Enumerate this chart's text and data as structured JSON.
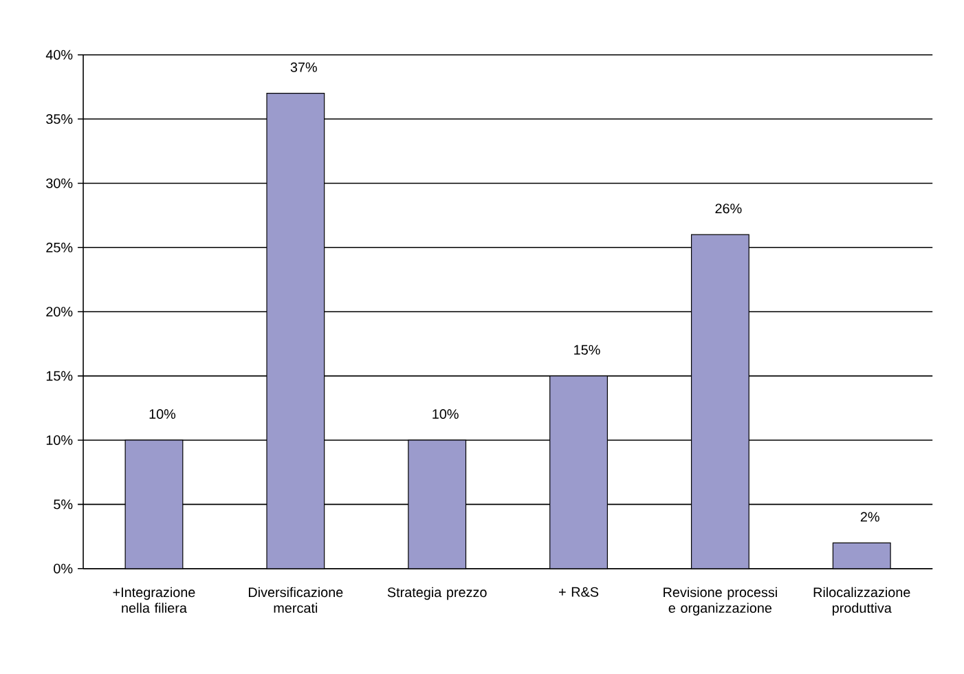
{
  "chart_data": {
    "type": "bar",
    "categories": [
      "+Integrazione nella filiera",
      "Diversificazione mercati",
      "Strategia prezzo",
      "+ R&S",
      "Revisione processi e organizzazione",
      "Rilocalizzazione produttiva"
    ],
    "values": [
      10,
      37,
      10,
      15,
      26,
      2
    ],
    "color": "#9b9bcc",
    "value_labels": [
      "10%",
      "37%",
      "10%",
      "15%",
      "26%",
      "2%"
    ],
    "ylim": [
      0,
      40
    ],
    "yticks": [
      {
        "value": 0,
        "label": "0%"
      },
      {
        "value": 5,
        "label": "5%"
      },
      {
        "value": 10,
        "label": "10%"
      },
      {
        "value": 15,
        "label": "15%"
      },
      {
        "value": 20,
        "label": "20%"
      },
      {
        "value": 25,
        "label": "25%"
      },
      {
        "value": 30,
        "label": "30%"
      },
      {
        "value": 35,
        "label": "35%"
      },
      {
        "value": 40,
        "label": "40%"
      }
    ],
    "grid": "y"
  }
}
